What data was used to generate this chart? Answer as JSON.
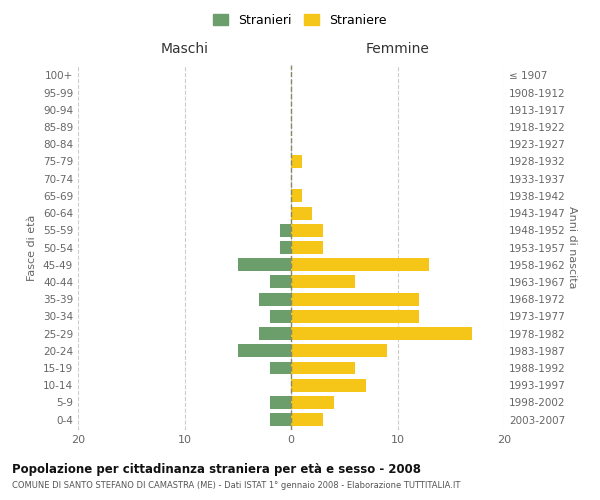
{
  "age_groups": [
    "0-4",
    "5-9",
    "10-14",
    "15-19",
    "20-24",
    "25-29",
    "30-34",
    "35-39",
    "40-44",
    "45-49",
    "50-54",
    "55-59",
    "60-64",
    "65-69",
    "70-74",
    "75-79",
    "80-84",
    "85-89",
    "90-94",
    "95-99",
    "100+"
  ],
  "birth_years": [
    "2003-2007",
    "1998-2002",
    "1993-1997",
    "1988-1992",
    "1983-1987",
    "1978-1982",
    "1973-1977",
    "1968-1972",
    "1963-1967",
    "1958-1962",
    "1953-1957",
    "1948-1952",
    "1943-1947",
    "1938-1942",
    "1933-1937",
    "1928-1932",
    "1923-1927",
    "1918-1922",
    "1913-1917",
    "1908-1912",
    "≤ 1907"
  ],
  "maschi": [
    2,
    2,
    0,
    2,
    5,
    3,
    2,
    3,
    2,
    5,
    1,
    1,
    0,
    0,
    0,
    0,
    0,
    0,
    0,
    0,
    0
  ],
  "femmine": [
    3,
    4,
    7,
    6,
    9,
    17,
    12,
    12,
    6,
    13,
    3,
    3,
    2,
    1,
    0,
    1,
    0,
    0,
    0,
    0,
    0
  ],
  "title": "Popolazione per cittadinanza straniera per età e sesso - 2008",
  "subtitle": "COMUNE DI SANTO STEFANO DI CAMASTRA (ME) - Dati ISTAT 1° gennaio 2008 - Elaborazione TUTTITALIA.IT",
  "xlabel_left": "Maschi",
  "xlabel_right": "Femmine",
  "ylabel_left": "Fasce di età",
  "ylabel_right": "Anni di nascita",
  "legend_maschi": "Stranieri",
  "legend_femmine": "Straniere",
  "xlim": 20,
  "bg_color": "#ffffff",
  "grid_color": "#cccccc",
  "bar_color_maschi": "#6b9e6b",
  "bar_color_femmine": "#f5c518"
}
